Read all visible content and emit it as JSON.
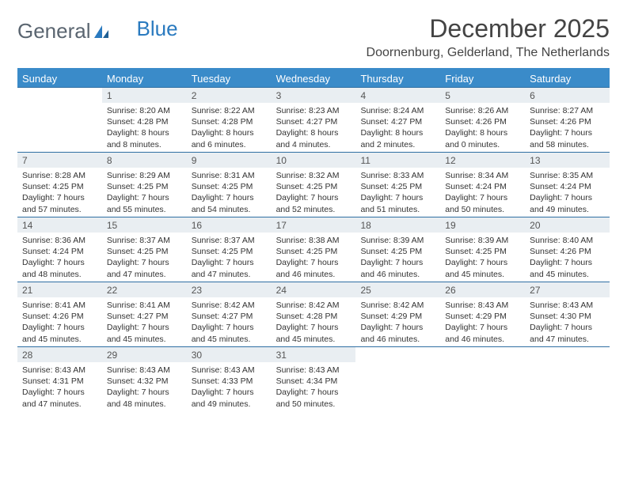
{
  "brand": {
    "part1": "General",
    "part2": "Blue"
  },
  "title": "December 2025",
  "location": "Doornenburg, Gelderland, The Netherlands",
  "colors": {
    "header_bg": "#3a8bc9",
    "header_text": "#ffffff",
    "daynum_bg": "#e9eef2",
    "rule": "#2f6fa3",
    "text": "#333333",
    "brand_gray": "#5a6570",
    "brand_blue": "#2a7abf"
  },
  "day_headers": [
    "Sunday",
    "Monday",
    "Tuesday",
    "Wednesday",
    "Thursday",
    "Friday",
    "Saturday"
  ],
  "weeks": [
    {
      "nums": [
        "",
        "1",
        "2",
        "3",
        "4",
        "5",
        "6"
      ],
      "cells": [
        null,
        {
          "sunrise": "Sunrise: 8:20 AM",
          "sunset": "Sunset: 4:28 PM",
          "dl1": "Daylight: 8 hours",
          "dl2": "and 8 minutes."
        },
        {
          "sunrise": "Sunrise: 8:22 AM",
          "sunset": "Sunset: 4:28 PM",
          "dl1": "Daylight: 8 hours",
          "dl2": "and 6 minutes."
        },
        {
          "sunrise": "Sunrise: 8:23 AM",
          "sunset": "Sunset: 4:27 PM",
          "dl1": "Daylight: 8 hours",
          "dl2": "and 4 minutes."
        },
        {
          "sunrise": "Sunrise: 8:24 AM",
          "sunset": "Sunset: 4:27 PM",
          "dl1": "Daylight: 8 hours",
          "dl2": "and 2 minutes."
        },
        {
          "sunrise": "Sunrise: 8:26 AM",
          "sunset": "Sunset: 4:26 PM",
          "dl1": "Daylight: 8 hours",
          "dl2": "and 0 minutes."
        },
        {
          "sunrise": "Sunrise: 8:27 AM",
          "sunset": "Sunset: 4:26 PM",
          "dl1": "Daylight: 7 hours",
          "dl2": "and 58 minutes."
        }
      ]
    },
    {
      "nums": [
        "7",
        "8",
        "9",
        "10",
        "11",
        "12",
        "13"
      ],
      "cells": [
        {
          "sunrise": "Sunrise: 8:28 AM",
          "sunset": "Sunset: 4:25 PM",
          "dl1": "Daylight: 7 hours",
          "dl2": "and 57 minutes."
        },
        {
          "sunrise": "Sunrise: 8:29 AM",
          "sunset": "Sunset: 4:25 PM",
          "dl1": "Daylight: 7 hours",
          "dl2": "and 55 minutes."
        },
        {
          "sunrise": "Sunrise: 8:31 AM",
          "sunset": "Sunset: 4:25 PM",
          "dl1": "Daylight: 7 hours",
          "dl2": "and 54 minutes."
        },
        {
          "sunrise": "Sunrise: 8:32 AM",
          "sunset": "Sunset: 4:25 PM",
          "dl1": "Daylight: 7 hours",
          "dl2": "and 52 minutes."
        },
        {
          "sunrise": "Sunrise: 8:33 AM",
          "sunset": "Sunset: 4:25 PM",
          "dl1": "Daylight: 7 hours",
          "dl2": "and 51 minutes."
        },
        {
          "sunrise": "Sunrise: 8:34 AM",
          "sunset": "Sunset: 4:24 PM",
          "dl1": "Daylight: 7 hours",
          "dl2": "and 50 minutes."
        },
        {
          "sunrise": "Sunrise: 8:35 AM",
          "sunset": "Sunset: 4:24 PM",
          "dl1": "Daylight: 7 hours",
          "dl2": "and 49 minutes."
        }
      ]
    },
    {
      "nums": [
        "14",
        "15",
        "16",
        "17",
        "18",
        "19",
        "20"
      ],
      "cells": [
        {
          "sunrise": "Sunrise: 8:36 AM",
          "sunset": "Sunset: 4:24 PM",
          "dl1": "Daylight: 7 hours",
          "dl2": "and 48 minutes."
        },
        {
          "sunrise": "Sunrise: 8:37 AM",
          "sunset": "Sunset: 4:25 PM",
          "dl1": "Daylight: 7 hours",
          "dl2": "and 47 minutes."
        },
        {
          "sunrise": "Sunrise: 8:37 AM",
          "sunset": "Sunset: 4:25 PM",
          "dl1": "Daylight: 7 hours",
          "dl2": "and 47 minutes."
        },
        {
          "sunrise": "Sunrise: 8:38 AM",
          "sunset": "Sunset: 4:25 PM",
          "dl1": "Daylight: 7 hours",
          "dl2": "and 46 minutes."
        },
        {
          "sunrise": "Sunrise: 8:39 AM",
          "sunset": "Sunset: 4:25 PM",
          "dl1": "Daylight: 7 hours",
          "dl2": "and 46 minutes."
        },
        {
          "sunrise": "Sunrise: 8:39 AM",
          "sunset": "Sunset: 4:25 PM",
          "dl1": "Daylight: 7 hours",
          "dl2": "and 45 minutes."
        },
        {
          "sunrise": "Sunrise: 8:40 AM",
          "sunset": "Sunset: 4:26 PM",
          "dl1": "Daylight: 7 hours",
          "dl2": "and 45 minutes."
        }
      ]
    },
    {
      "nums": [
        "21",
        "22",
        "23",
        "24",
        "25",
        "26",
        "27"
      ],
      "cells": [
        {
          "sunrise": "Sunrise: 8:41 AM",
          "sunset": "Sunset: 4:26 PM",
          "dl1": "Daylight: 7 hours",
          "dl2": "and 45 minutes."
        },
        {
          "sunrise": "Sunrise: 8:41 AM",
          "sunset": "Sunset: 4:27 PM",
          "dl1": "Daylight: 7 hours",
          "dl2": "and 45 minutes."
        },
        {
          "sunrise": "Sunrise: 8:42 AM",
          "sunset": "Sunset: 4:27 PM",
          "dl1": "Daylight: 7 hours",
          "dl2": "and 45 minutes."
        },
        {
          "sunrise": "Sunrise: 8:42 AM",
          "sunset": "Sunset: 4:28 PM",
          "dl1": "Daylight: 7 hours",
          "dl2": "and 45 minutes."
        },
        {
          "sunrise": "Sunrise: 8:42 AM",
          "sunset": "Sunset: 4:29 PM",
          "dl1": "Daylight: 7 hours",
          "dl2": "and 46 minutes."
        },
        {
          "sunrise": "Sunrise: 8:43 AM",
          "sunset": "Sunset: 4:29 PM",
          "dl1": "Daylight: 7 hours",
          "dl2": "and 46 minutes."
        },
        {
          "sunrise": "Sunrise: 8:43 AM",
          "sunset": "Sunset: 4:30 PM",
          "dl1": "Daylight: 7 hours",
          "dl2": "and 47 minutes."
        }
      ]
    },
    {
      "nums": [
        "28",
        "29",
        "30",
        "31",
        "",
        "",
        ""
      ],
      "cells": [
        {
          "sunrise": "Sunrise: 8:43 AM",
          "sunset": "Sunset: 4:31 PM",
          "dl1": "Daylight: 7 hours",
          "dl2": "and 47 minutes."
        },
        {
          "sunrise": "Sunrise: 8:43 AM",
          "sunset": "Sunset: 4:32 PM",
          "dl1": "Daylight: 7 hours",
          "dl2": "and 48 minutes."
        },
        {
          "sunrise": "Sunrise: 8:43 AM",
          "sunset": "Sunset: 4:33 PM",
          "dl1": "Daylight: 7 hours",
          "dl2": "and 49 minutes."
        },
        {
          "sunrise": "Sunrise: 8:43 AM",
          "sunset": "Sunset: 4:34 PM",
          "dl1": "Daylight: 7 hours",
          "dl2": "and 50 minutes."
        },
        null,
        null,
        null
      ]
    }
  ]
}
